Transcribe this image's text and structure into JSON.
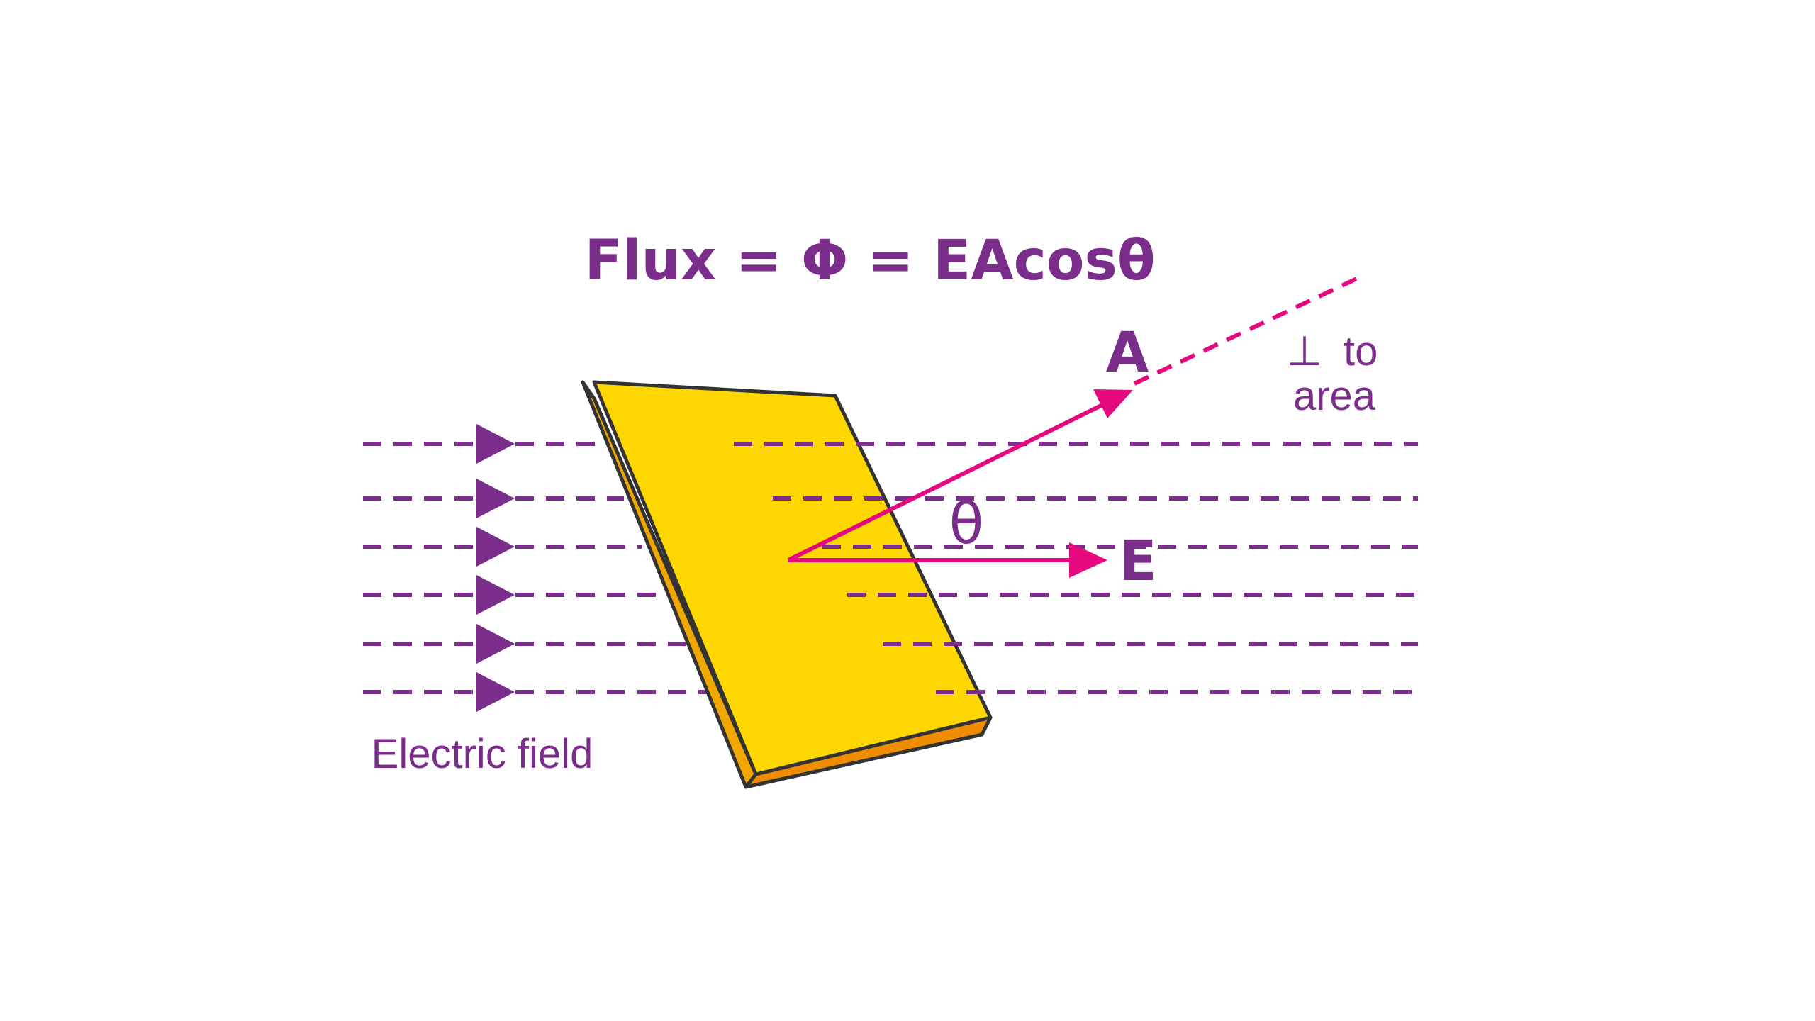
{
  "formula": "Flux = Φ = EAcosθ",
  "field_label": "Electric field",
  "vector_a_label": "A",
  "vector_e_label": "E",
  "angle_label": "θ",
  "perpendicular_symbol": "⊥",
  "perpendicular_to": "to",
  "perpendicular_area": "area",
  "colors": {
    "text_purple": "#7b2d8b",
    "field_purple": "#7b2d8b",
    "vector_magenta": "#e6087e",
    "plate_face": "#ffd700",
    "plate_edge": "#f0a800",
    "plate_outline": "#333333"
  }
}
